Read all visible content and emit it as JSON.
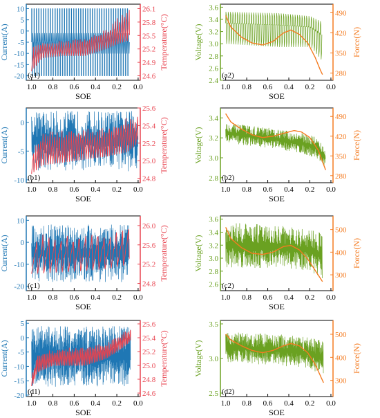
{
  "colors": {
    "current": "#1f77b4",
    "temperature": "#e8434f",
    "voltage": "#6aa121",
    "force": "#f47b20",
    "axis": "#000000"
  },
  "chart_data": [
    {
      "type": "line",
      "panel_label": "(a1)",
      "xlabel": "SOE",
      "xlim": [
        1.05,
        -0.02
      ],
      "xticks": [
        "1.0",
        "0.8",
        "0.6",
        "0.4",
        "0.2",
        "0.0"
      ],
      "ylabel_left": "Current(A)",
      "ylim_left": [
        -22,
        12
      ],
      "yticks_left": [
        "10",
        "5",
        "0",
        "-5",
        "-10",
        "-15",
        "-20"
      ],
      "ylabel_right": "Temperature(°C)",
      "ylim_right": [
        24.5,
        26.2
      ],
      "yticks_right": [
        "26.1",
        "25.8",
        "25.5",
        "25.2",
        "24.9",
        "24.6"
      ],
      "series": [
        {
          "name": "Current",
          "axis": "left",
          "pattern": "pulse",
          "x_start": 1.0,
          "x_end": 0.08,
          "high": 10,
          "low": -20,
          "mid": -5,
          "cycles": 42
        },
        {
          "name": "Temperature",
          "axis": "right",
          "pattern": "sawtooth",
          "x_start": 1.0,
          "x_end": 0.08,
          "cycles": 42,
          "envelope_x": [
            1.0,
            0.9,
            0.7,
            0.5,
            0.3,
            0.15,
            0.08
          ],
          "envelope_low": [
            24.7,
            25.0,
            25.05,
            25.05,
            25.2,
            25.35,
            25.4
          ],
          "envelope_high": [
            25.2,
            25.3,
            25.35,
            25.4,
            25.6,
            25.95,
            26.05
          ]
        }
      ]
    },
    {
      "type": "line",
      "panel_label": "(a2)",
      "xlabel": "SOE",
      "xlim": [
        1.05,
        -0.02
      ],
      "xticks": [
        "1.0",
        "0.8",
        "0.6",
        "0.4",
        "0.2",
        "0.0"
      ],
      "ylabel_left": "Voltage(V)",
      "ylim_left": [
        2.4,
        3.65
      ],
      "yticks_left": [
        "3.6",
        "3.4",
        "3.2",
        "3.0",
        "2.8",
        "2.6",
        "2.4"
      ],
      "ylabel_right": "Force(N)",
      "ylim_right": [
        255,
        520
      ],
      "yticks_right": [
        "490",
        "420",
        "350",
        "280"
      ],
      "series": [
        {
          "name": "Voltage",
          "axis": "left",
          "pattern": "pulse",
          "x_start": 1.0,
          "x_end": 0.08,
          "cycles": 42,
          "envelope_x": [
            1.0,
            0.5,
            0.2,
            0.08
          ],
          "envelope_low": [
            3.0,
            2.95,
            2.95,
            2.7
          ],
          "envelope_high": [
            3.52,
            3.5,
            3.45,
            3.35
          ]
        },
        {
          "name": "Force",
          "axis": "right",
          "pattern": "smooth",
          "x": [
            1.0,
            0.95,
            0.85,
            0.75,
            0.65,
            0.55,
            0.45,
            0.38,
            0.3,
            0.22,
            0.15,
            0.1,
            0.08
          ],
          "y": [
            480,
            440,
            405,
            385,
            378,
            390,
            420,
            430,
            415,
            385,
            335,
            290,
            275
          ]
        }
      ]
    },
    {
      "type": "line",
      "panel_label": "(b1)",
      "xlabel": "SOE",
      "xlim": [
        1.05,
        -0.02
      ],
      "xticks": [
        "1.0",
        "0.8",
        "0.6",
        "0.4",
        "0.2",
        "0.0"
      ],
      "ylabel_left": "Current(A)",
      "ylim_left": [
        -10.5,
        2.5
      ],
      "yticks_left": [
        "0",
        "-5",
        "-10"
      ],
      "ylabel_right": "Temperature(°C)",
      "ylim_right": [
        24.75,
        25.6
      ],
      "yticks_right": [
        "25.6",
        "25.4",
        "25.2",
        "25.0",
        "24.8"
      ],
      "series": [
        {
          "name": "Current",
          "axis": "left",
          "pattern": "noise",
          "x_start": 1.0,
          "x_end": 0.0,
          "high": 2,
          "low": -8.5,
          "mid": -3,
          "cycles": 180
        },
        {
          "name": "Temperature",
          "axis": "right",
          "pattern": "sawtooth",
          "x_start": 1.0,
          "x_end": 0.0,
          "cycles": 45,
          "envelope_x": [
            1.0,
            0.9,
            0.6,
            0.3,
            0.1,
            0.0
          ],
          "envelope_low": [
            24.85,
            24.95,
            25.0,
            25.05,
            25.1,
            25.2
          ],
          "envelope_high": [
            25.1,
            25.3,
            25.3,
            25.35,
            25.45,
            25.5
          ]
        }
      ]
    },
    {
      "type": "line",
      "panel_label": "(b2)",
      "xlabel": "SOE",
      "xlim": [
        1.05,
        -0.02
      ],
      "xticks": [
        "1.0",
        "0.8",
        "0.6",
        "0.4",
        "0.2",
        "0.0"
      ],
      "ylabel_left": "Voltage(V)",
      "ylim_left": [
        2.75,
        3.5
      ],
      "yticks_left": [
        "3.4",
        "3.2",
        "3.0",
        "2.8"
      ],
      "ylabel_right": "Force(N)",
      "ylim_right": [
        255,
        520
      ],
      "yticks_right": [
        "490",
        "420",
        "350",
        "280"
      ],
      "series": [
        {
          "name": "Voltage",
          "axis": "left",
          "pattern": "noise",
          "x_start": 1.0,
          "x_end": 0.05,
          "cycles": 220,
          "envelope_x": [
            1.0,
            0.6,
            0.3,
            0.15,
            0.05
          ],
          "envelope_low": [
            3.15,
            3.1,
            3.05,
            3.0,
            2.9
          ],
          "envelope_high": [
            3.35,
            3.3,
            3.25,
            3.22,
            3.1
          ]
        },
        {
          "name": "Force",
          "axis": "right",
          "pattern": "smooth",
          "x": [
            1.0,
            0.95,
            0.85,
            0.75,
            0.65,
            0.55,
            0.45,
            0.35,
            0.28,
            0.2,
            0.12,
            0.05
          ],
          "y": [
            500,
            470,
            445,
            425,
            415,
            420,
            430,
            440,
            435,
            415,
            370,
            300
          ]
        }
      ]
    },
    {
      "type": "line",
      "panel_label": "(c1)",
      "xlabel": "SOE",
      "xlim": [
        1.05,
        -0.02
      ],
      "xticks": [
        "1.0",
        "0.8",
        "0.6",
        "0.4",
        "0.2",
        "0.0"
      ],
      "ylabel_left": "Current(A)",
      "ylim_left": [
        -22,
        12
      ],
      "yticks_left": [
        "10",
        "0",
        "-10",
        "-20"
      ],
      "ylabel_right": "Temperature(°C)",
      "ylim_right": [
        24.65,
        26.2
      ],
      "yticks_right": [
        "26.0",
        "25.6",
        "25.2",
        "24.8"
      ],
      "series": [
        {
          "name": "Current",
          "axis": "left",
          "pattern": "noise",
          "x_start": 1.0,
          "x_end": 0.08,
          "high": 8,
          "low": -18,
          "mid": -4,
          "cycles": 200
        },
        {
          "name": "Temperature",
          "axis": "right",
          "pattern": "sawtooth",
          "x_start": 1.0,
          "x_end": 0.08,
          "cycles": 16,
          "envelope_x": [
            1.0,
            0.6,
            0.3,
            0.08
          ],
          "envelope_low": [
            25.0,
            25.05,
            25.1,
            25.2
          ],
          "envelope_high": [
            25.7,
            25.75,
            25.8,
            25.9
          ]
        }
      ]
    },
    {
      "type": "line",
      "panel_label": "(c2)",
      "xlabel": "SOE",
      "xlim": [
        1.05,
        -0.02
      ],
      "xticks": [
        "1.0",
        "0.8",
        "0.6",
        "0.4",
        "0.2",
        "0.0"
      ],
      "ylabel_left": "Voltage(V)",
      "ylim_left": [
        2.5,
        3.65
      ],
      "yticks_left": [
        "3.6",
        "3.4",
        "3.2",
        "3.0",
        "2.8",
        "2.6"
      ],
      "ylabel_right": "Force(N)",
      "ylim_right": [
        230,
        560
      ],
      "yticks_right": [
        "500",
        "400",
        "300"
      ],
      "series": [
        {
          "name": "Voltage",
          "axis": "left",
          "pattern": "noise",
          "x_start": 1.0,
          "x_end": 0.08,
          "cycles": 200,
          "envelope_x": [
            1.0,
            0.5,
            0.2,
            0.08
          ],
          "envelope_low": [
            2.85,
            2.85,
            2.8,
            2.65
          ],
          "envelope_high": [
            3.55,
            3.5,
            3.45,
            3.4
          ]
        },
        {
          "name": "Force",
          "axis": "right",
          "pattern": "smooth",
          "x": [
            1.0,
            0.95,
            0.85,
            0.75,
            0.65,
            0.55,
            0.45,
            0.38,
            0.3,
            0.22,
            0.15,
            0.08
          ],
          "y": [
            510,
            460,
            420,
            395,
            390,
            400,
            425,
            430,
            410,
            370,
            320,
            270
          ]
        }
      ]
    },
    {
      "type": "line",
      "panel_label": "(d1)",
      "xlabel": "SOE",
      "xlim": [
        1.05,
        -0.02
      ],
      "xticks": [
        "1.0",
        "0.8",
        "0.6",
        "0.4",
        "0.2",
        "0.0"
      ],
      "ylabel_left": "Current(A)",
      "ylim_left": [
        -20.5,
        6
      ],
      "yticks_left": [
        "5",
        "0",
        "-5",
        "-10",
        "-15",
        "-20"
      ],
      "ylabel_right": "Temperature(°C)",
      "ylim_right": [
        24.55,
        25.65
      ],
      "yticks_right": [
        "25.6",
        "25.4",
        "25.2",
        "25.0",
        "24.8",
        "24.6"
      ],
      "series": [
        {
          "name": "Current",
          "axis": "left",
          "pattern": "noise",
          "x_start": 1.0,
          "x_end": 0.07,
          "high": 4,
          "low": -17,
          "mid": -6,
          "cycles": 260
        },
        {
          "name": "Temperature",
          "axis": "right",
          "pattern": "sawtooth",
          "x_start": 1.0,
          "x_end": 0.07,
          "cycles": 60,
          "envelope_x": [
            1.0,
            0.95,
            0.8,
            0.5,
            0.3,
            0.15,
            0.07
          ],
          "envelope_low": [
            24.7,
            24.9,
            25.0,
            25.0,
            25.1,
            25.25,
            25.35
          ],
          "envelope_high": [
            24.9,
            25.15,
            25.2,
            25.25,
            25.3,
            25.45,
            25.5
          ]
        }
      ]
    },
    {
      "type": "line",
      "panel_label": "(d2)",
      "xlabel": "SOE",
      "xlim": [
        1.05,
        -0.02
      ],
      "xticks": [
        "1.0",
        "0.8",
        "0.6",
        "0.4",
        "0.2",
        "0.0"
      ],
      "ylabel_left": "Voltage(V)",
      "ylim_left": [
        2.45,
        3.55
      ],
      "yticks_left": [
        "3.5",
        "3.0",
        "2.5"
      ],
      "ylabel_right": "Force(N)",
      "ylim_right": [
        230,
        560
      ],
      "yticks_right": [
        "500",
        "400",
        "300"
      ],
      "series": [
        {
          "name": "Voltage",
          "axis": "left",
          "pattern": "noise",
          "x_start": 1.0,
          "x_end": 0.07,
          "cycles": 260,
          "envelope_x": [
            1.0,
            0.5,
            0.2,
            0.07
          ],
          "envelope_low": [
            2.95,
            2.9,
            2.85,
            2.75
          ],
          "envelope_high": [
            3.38,
            3.35,
            3.3,
            3.25
          ]
        },
        {
          "name": "Force",
          "axis": "right",
          "pattern": "smooth",
          "x": [
            1.0,
            0.95,
            0.85,
            0.75,
            0.65,
            0.55,
            0.45,
            0.38,
            0.3,
            0.22,
            0.15,
            0.07
          ],
          "y": [
            500,
            475,
            450,
            430,
            420,
            430,
            450,
            460,
            450,
            420,
            370,
            290
          ]
        }
      ]
    }
  ]
}
